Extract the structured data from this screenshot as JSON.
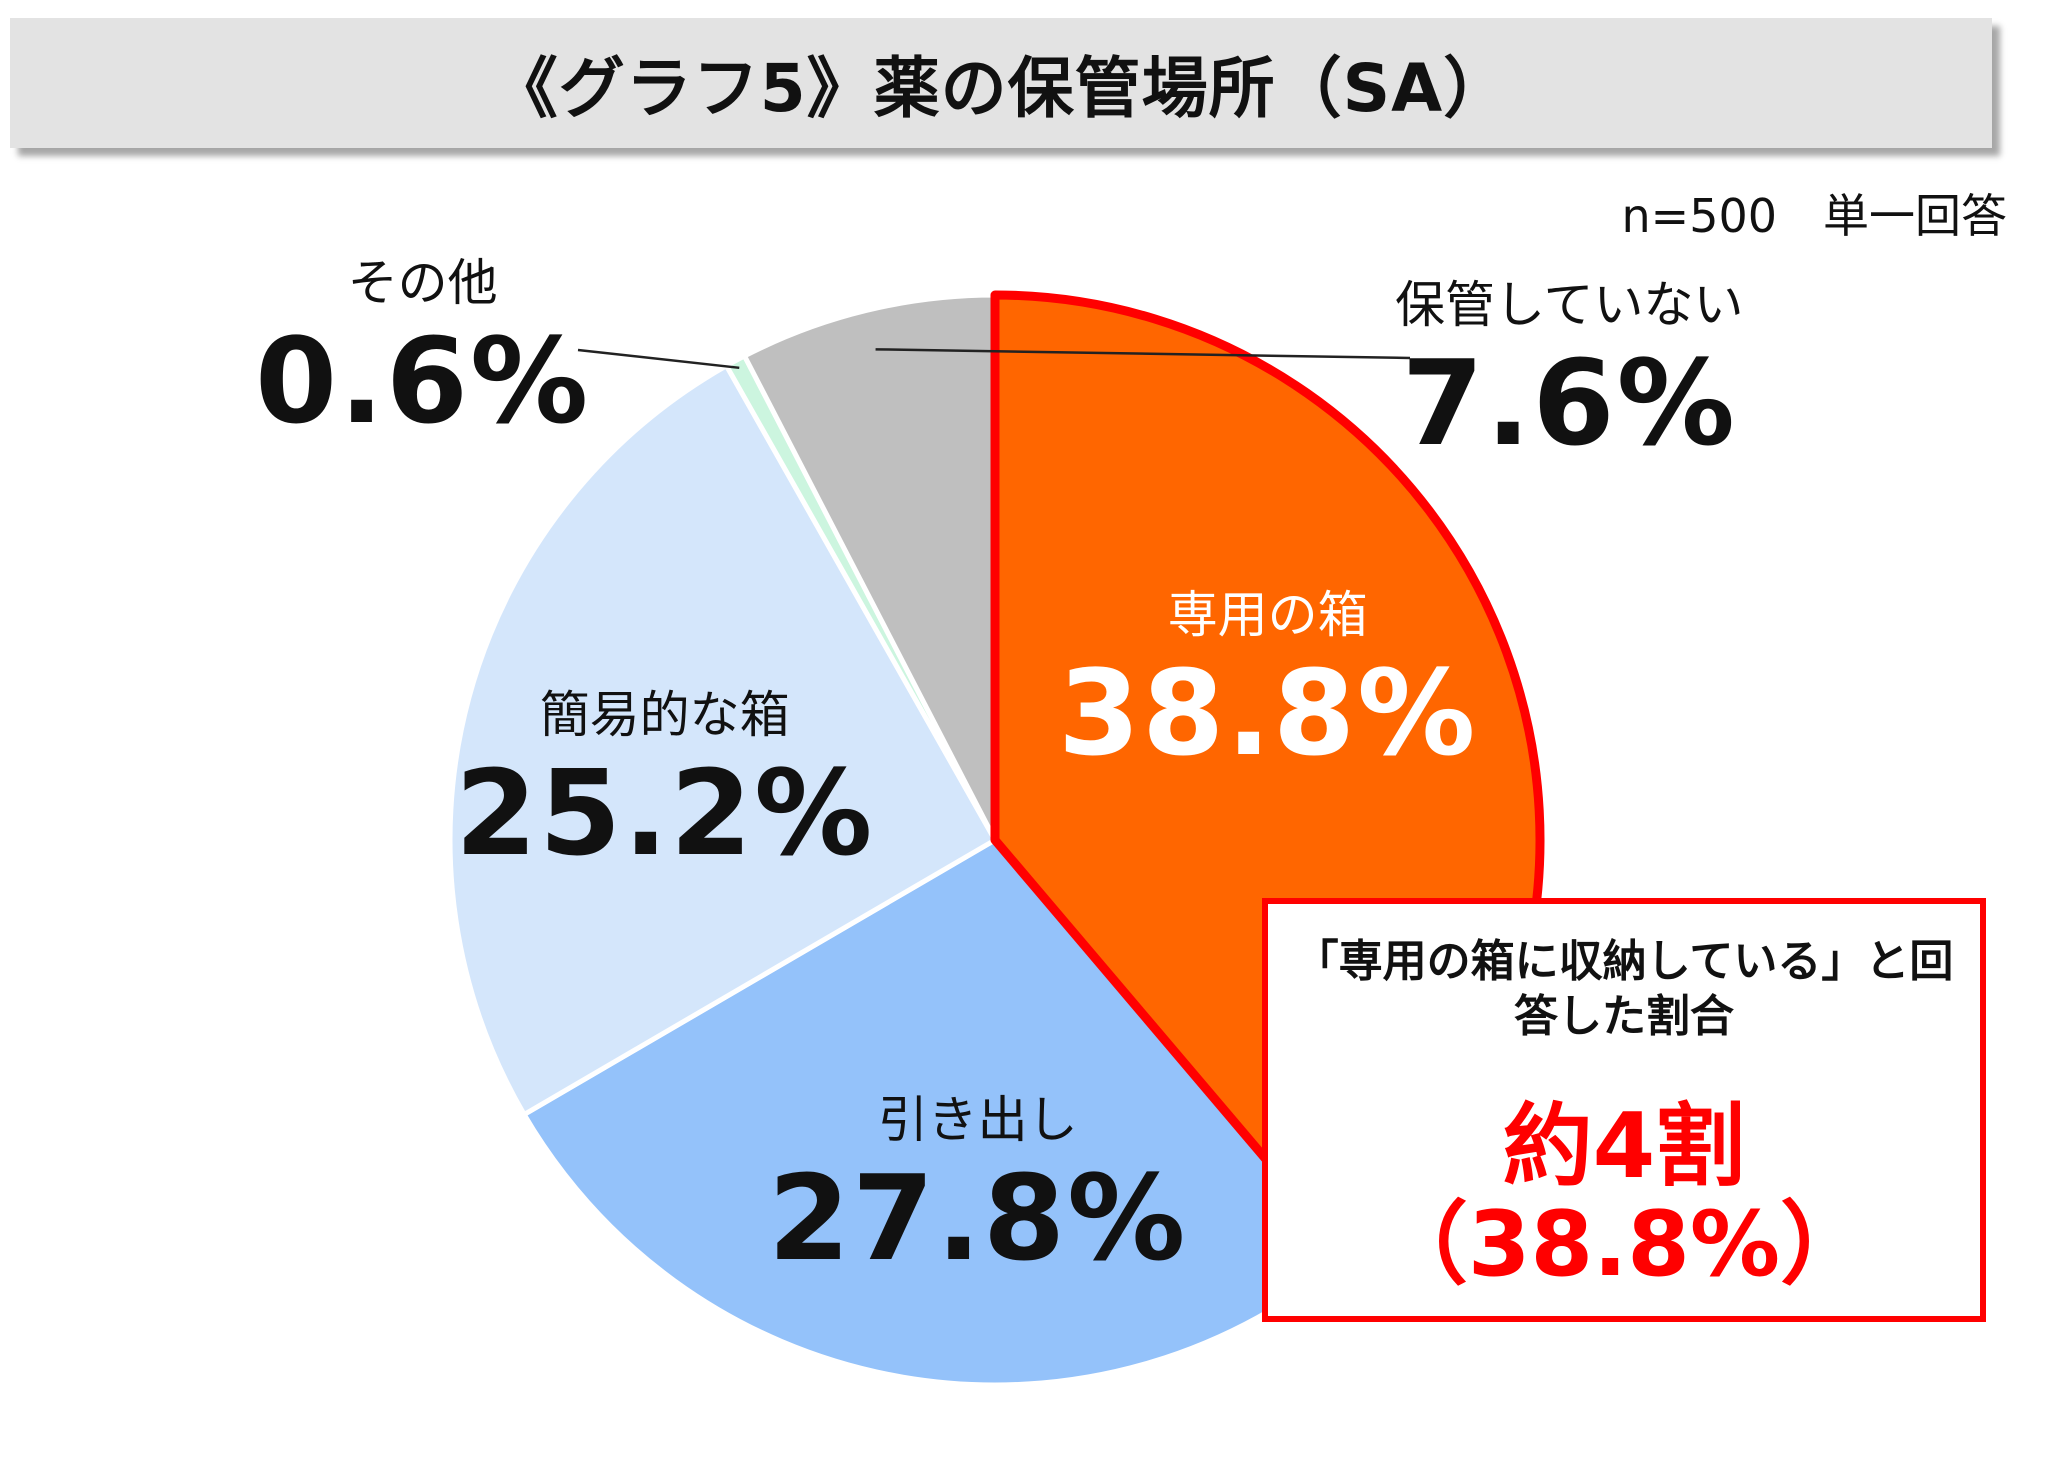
{
  "title": "《グラフ5》薬の保管場所（SA）",
  "note": "n=500　単一回答",
  "chart_data": {
    "type": "pie",
    "title": "《グラフ5》薬の保管場所（SA）",
    "slices": [
      {
        "name": "専用の箱",
        "value": 38.8,
        "label": "38.8%",
        "color": "#ff6600",
        "highlight": true
      },
      {
        "name": "引き出し",
        "value": 27.8,
        "label": "27.8%",
        "color": "#94c2fa"
      },
      {
        "name": "簡易的な箱",
        "value": 25.2,
        "label": "25.2%",
        "color": "#d4e6fb"
      },
      {
        "name": "その他",
        "value": 0.6,
        "label": "0.6%",
        "color": "#ccf5df"
      },
      {
        "name": "保管していない",
        "value": 7.6,
        "label": "7.6%",
        "color": "#bfbfbf"
      }
    ],
    "start": "12 o'clock",
    "direction": "clockwise"
  },
  "callout": {
    "text": "「専用の箱に収納している」と回答した割合",
    "headline": "約4割",
    "value": "（38.8%）"
  },
  "colors": {
    "highlight_border": "#ff0000",
    "title_bg": "#e3e3e3"
  }
}
